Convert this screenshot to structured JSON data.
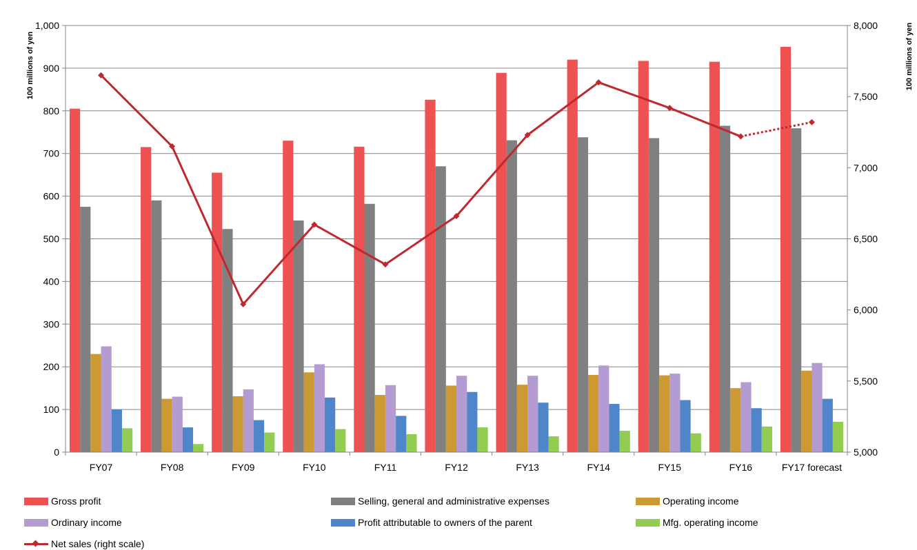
{
  "chart_data": {
    "type": "bar",
    "categories": [
      "FY07",
      "FY08",
      "FY09",
      "FY10",
      "FY11",
      "FY12",
      "FY13",
      "FY14",
      "FY15",
      "FY16",
      "FY17 forecast"
    ],
    "left_axis": {
      "label": "100 millions of yen",
      "ylim": [
        0,
        1000
      ],
      "ticks": [
        "0",
        "100",
        "200",
        "300",
        "400",
        "500",
        "600",
        "700",
        "800",
        "900",
        "1,000"
      ]
    },
    "right_axis": {
      "label": "100 millions of yen",
      "ylim": [
        5000,
        8000
      ],
      "ticks": [
        "5,000",
        "5,500",
        "6,000",
        "6,500",
        "7,000",
        "7,500",
        "8,000"
      ]
    },
    "grid": true,
    "series": [
      {
        "name": "Gross profit",
        "type": "bar",
        "axis": "left",
        "color": "#ee5151",
        "values": [
          805,
          715,
          655,
          730,
          716,
          826,
          889,
          920,
          917,
          915,
          950
        ]
      },
      {
        "name": "Selling, general and administrative expenses",
        "type": "bar",
        "axis": "left",
        "color": "#808080",
        "values": [
          575,
          590,
          523,
          543,
          582,
          670,
          731,
          738,
          736,
          765,
          759
        ]
      },
      {
        "name": "Operating income",
        "type": "bar",
        "axis": "left",
        "color": "#cc9933",
        "values": [
          230,
          125,
          131,
          187,
          134,
          156,
          158,
          181,
          180,
          150,
          191
        ]
      },
      {
        "name": "Ordinary income",
        "type": "bar",
        "axis": "left",
        "color": "#b49bd1",
        "values": [
          248,
          130,
          147,
          206,
          157,
          179,
          179,
          203,
          184,
          164,
          209
        ]
      },
      {
        "name": "Profit  attributable to owners of the parent",
        "type": "bar",
        "axis": "left",
        "color": "#4f86c9",
        "values": [
          100,
          58,
          75,
          128,
          85,
          141,
          116,
          113,
          122,
          103,
          125
        ]
      },
      {
        "name": "Mfg. operating income",
        "type": "bar",
        "axis": "left",
        "color": "#92cc50",
        "values": [
          56,
          19,
          46,
          54,
          42,
          58,
          37,
          50,
          44,
          60,
          71
        ]
      },
      {
        "name": "Net sales (right scale)",
        "type": "line",
        "axis": "right",
        "color": "#c0282f",
        "values": [
          7650,
          7150,
          6040,
          6600,
          6320,
          6660,
          7230,
          7600,
          7420,
          7220,
          7320
        ],
        "forecast_dotted_from_index": 9
      }
    ]
  }
}
